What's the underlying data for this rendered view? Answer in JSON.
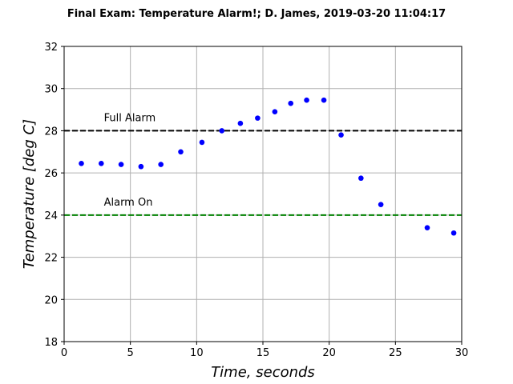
{
  "chart_data": {
    "type": "scatter",
    "title": "Final Exam: Temperature Alarm!; D. James, 2019-03-20 11:04:17",
    "xlabel": "Time, seconds",
    "ylabel": "Temperature [deg C]",
    "xlim": [
      0,
      30
    ],
    "ylim": [
      18,
      32
    ],
    "xticks": [
      0,
      5,
      10,
      15,
      20,
      25,
      30
    ],
    "yticks": [
      18,
      20,
      22,
      24,
      26,
      28,
      30,
      32
    ],
    "grid": true,
    "series": [
      {
        "color": "#0000ff",
        "marker": "circle",
        "x": [
          1.3,
          2.8,
          4.3,
          5.8,
          7.3,
          8.8,
          10.4,
          11.9,
          13.3,
          14.6,
          15.9,
          17.1,
          18.3,
          19.6,
          20.9,
          22.4,
          23.9,
          27.4,
          29.4
        ],
        "y": [
          26.45,
          26.45,
          26.4,
          26.3,
          26.4,
          27.0,
          27.45,
          28.0,
          28.35,
          28.6,
          28.9,
          29.3,
          29.45,
          29.45,
          27.8,
          25.75,
          24.5,
          23.4,
          23.15
        ]
      }
    ],
    "thresholds": [
      {
        "label": "Full Alarm",
        "value": 28,
        "color": "#000000",
        "label_x": 3
      },
      {
        "label": "Alarm On",
        "value": 24,
        "color": "#008000",
        "label_x": 3
      }
    ]
  }
}
